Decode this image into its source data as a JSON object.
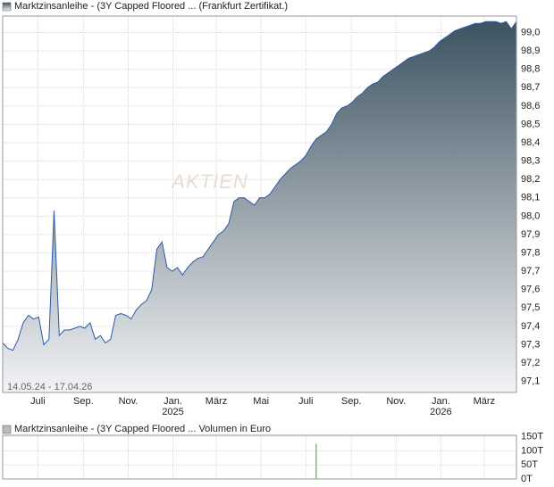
{
  "chart_data": [
    {
      "type": "area",
      "legend": "Marktzinsanleihe - (3Y Capped Floored ... (Frankfurt Zertifikat.)",
      "date_range": "14.05.24 - 17.04.26",
      "watermark": "AKTIEN",
      "color": "#2b59a6",
      "gradient": [
        "#3d5361",
        "#f2f3f5"
      ],
      "grid": true,
      "values": [
        97.31,
        97.28,
        97.27,
        97.33,
        97.42,
        97.46,
        97.44,
        97.45,
        97.3,
        97.33,
        98.03,
        97.35,
        97.38,
        97.38,
        97.39,
        97.4,
        97.39,
        97.42,
        97.33,
        97.35,
        97.31,
        97.33,
        97.46,
        97.47,
        97.46,
        97.44,
        97.49,
        97.52,
        97.54,
        97.6,
        97.82,
        97.86,
        97.72,
        97.7,
        97.72,
        97.68,
        97.72,
        97.75,
        97.77,
        97.78,
        97.82,
        97.86,
        97.9,
        97.92,
        97.96,
        98.08,
        98.1,
        98.1,
        98.08,
        98.06,
        98.1,
        98.1,
        98.12,
        98.16,
        98.2,
        98.23,
        98.26,
        98.28,
        98.3,
        98.33,
        98.38,
        98.42,
        98.44,
        98.46,
        98.5,
        98.56,
        98.59,
        98.6,
        98.62,
        98.65,
        98.67,
        98.7,
        98.72,
        98.73,
        98.76,
        98.78,
        98.8,
        98.82,
        98.84,
        98.86,
        98.87,
        98.88,
        98.89,
        98.9,
        98.92,
        98.95,
        98.97,
        98.99,
        99.01,
        99.02,
        99.03,
        99.04,
        99.05,
        99.05,
        99.06,
        99.06,
        99.06,
        99.05,
        99.06,
        99.02,
        99.06
      ],
      "xlim": [
        0,
        100
      ],
      "xticks": [
        {
          "value": 6.86,
          "label": "Juli"
        },
        {
          "value": 15.71,
          "label": "Sep."
        },
        {
          "value": 24.43,
          "label": "Nov."
        },
        {
          "value": 33.14,
          "label": "Jan."
        },
        {
          "value": 41.57,
          "label": "März"
        },
        {
          "value": 50.29,
          "label": "Mai"
        },
        {
          "value": 59,
          "label": "Juli"
        },
        {
          "value": 67.86,
          "label": "Sep."
        },
        {
          "value": 76.57,
          "label": "Nov."
        },
        {
          "value": 85.29,
          "label": "Jan."
        },
        {
          "value": 93.71,
          "label": "März"
        }
      ],
      "year_labels": [
        {
          "value": 33.14,
          "label": "2025"
        },
        {
          "value": 85.29,
          "label": "2026"
        }
      ],
      "ylim": [
        97.04,
        99.09
      ],
      "yticks": [
        {
          "value": 97.1,
          "label": "97,1"
        },
        {
          "value": 97.2,
          "label": "97,2"
        },
        {
          "value": 97.3,
          "label": "97,3"
        },
        {
          "value": 97.4,
          "label": "97,4"
        },
        {
          "value": 97.5,
          "label": "97,5"
        },
        {
          "value": 97.6,
          "label": "97,6"
        },
        {
          "value": 97.7,
          "label": "97,7"
        },
        {
          "value": 97.8,
          "label": "97,8"
        },
        {
          "value": 97.9,
          "label": "97,9"
        },
        {
          "value": 98.0,
          "label": "98,0"
        },
        {
          "value": 98.1,
          "label": "98,1"
        },
        {
          "value": 98.2,
          "label": "98,2"
        },
        {
          "value": 98.3,
          "label": "98,3"
        },
        {
          "value": 98.4,
          "label": "98,4"
        },
        {
          "value": 98.5,
          "label": "98,5"
        },
        {
          "value": 98.6,
          "label": "98,6"
        },
        {
          "value": 98.7,
          "label": "98,7"
        },
        {
          "value": 98.8,
          "label": "98,8"
        },
        {
          "value": 98.9,
          "label": "98,9"
        },
        {
          "value": 99.0,
          "label": "99,0"
        }
      ]
    },
    {
      "type": "bar",
      "legend": "Marktzinsanleihe - (3Y Capped Floored ... Volumen in Euro",
      "color": "#4fb84f",
      "grid": true,
      "values": [
        0,
        0,
        0,
        0,
        0,
        0,
        0,
        0,
        0,
        0,
        0,
        0,
        0,
        0,
        0,
        0,
        0,
        0,
        0,
        0,
        0,
        0,
        0,
        0,
        0,
        0,
        0,
        0,
        0,
        0,
        0,
        0,
        0,
        0,
        0,
        0,
        0,
        0,
        0,
        0,
        0,
        0,
        0,
        0,
        0,
        0,
        0,
        0,
        0,
        0,
        0,
        0,
        0,
        0,
        0,
        0,
        0,
        0,
        0,
        0,
        0,
        125,
        0,
        0,
        0,
        0,
        0,
        0,
        0,
        0,
        0,
        0,
        0,
        0,
        0,
        0,
        0,
        0,
        0,
        0,
        0,
        0,
        0,
        0,
        0,
        0,
        0,
        0,
        0,
        0,
        0,
        0,
        0,
        0,
        0,
        0,
        0,
        0,
        0,
        0,
        0
      ],
      "xlim": [
        0,
        100
      ],
      "xticks": [
        6.86,
        15.71,
        24.43,
        33.14,
        41.57,
        50.29,
        59,
        67.86,
        76.57,
        85.29,
        93.71
      ],
      "ylim": [
        0,
        155
      ],
      "yticks": [
        {
          "value": 0,
          "label": "0T"
        },
        {
          "value": 50,
          "label": "50T"
        },
        {
          "value": 100,
          "label": "100T"
        },
        {
          "value": 150,
          "label": "150T"
        }
      ]
    }
  ]
}
